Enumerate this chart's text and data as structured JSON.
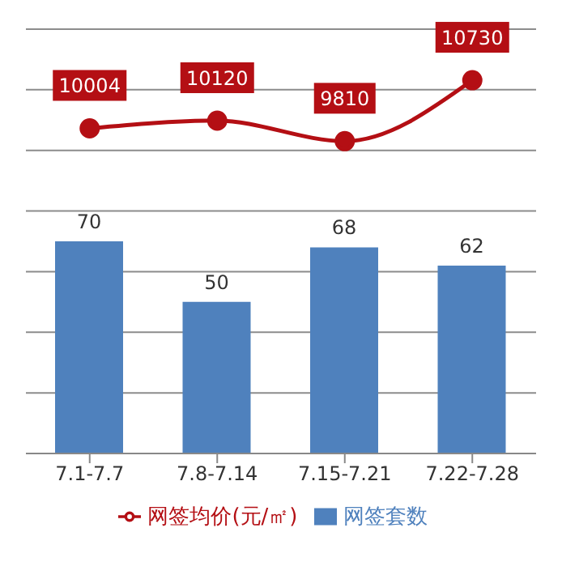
{
  "chart_data": {
    "type": "bar",
    "categories": [
      "7.1-7.7",
      "7.8-7.14",
      "7.15-7.21",
      "7.22-7.28"
    ],
    "series": [
      {
        "name": "网签套数",
        "color": "#4f81bd",
        "values": [
          70,
          50,
          68,
          62
        ]
      },
      {
        "name": "网签均价(元/㎡)",
        "type": "line",
        "axis": "y2",
        "color": "#b40f14",
        "values": [
          10004,
          10120,
          9810,
          10730
        ],
        "marker": "circle"
      }
    ],
    "ylim": [
      0,
      140
    ],
    "y2lim": [
      5100,
      11500
    ],
    "grid": "y",
    "legend": "bottom",
    "data_labels": true,
    "tick_labels": "x"
  }
}
